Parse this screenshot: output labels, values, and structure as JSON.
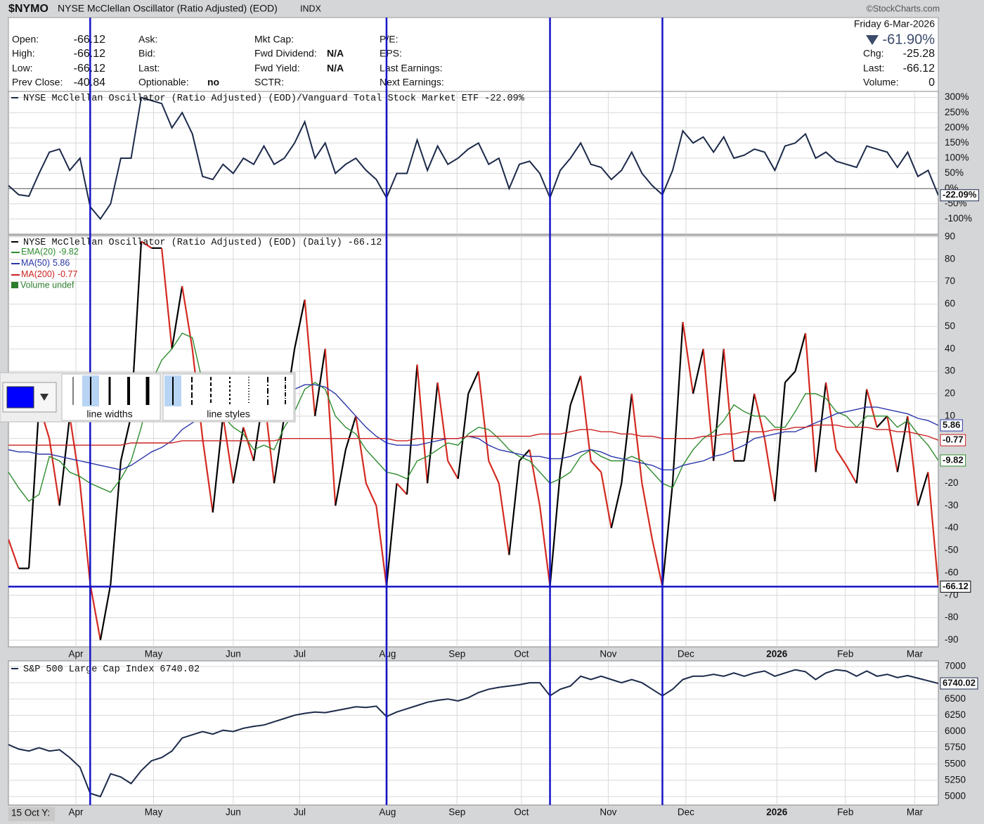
{
  "header": {
    "symbol": "$NYMO",
    "name": "NYSE McClellan Oscillator (Ratio Adjusted) (EOD)",
    "exchange": "INDX",
    "brand": "©StockCharts.com",
    "date": "Friday  6-Mar-2026",
    "change_pct": "-61.90%",
    "columns": [
      [
        {
          "label": "Open:",
          "value": -66.12
        },
        {
          "label": "High:",
          "value": -66.12
        },
        {
          "label": "Low:",
          "value": -66.12
        },
        {
          "label": "Prev Close:",
          "value": -40.84
        }
      ],
      [
        {
          "label": "Ask:"
        },
        {
          "label": "Bid:"
        },
        {
          "label": "Last:"
        },
        {
          "label": "Optionable:",
          "value": "no"
        }
      ],
      [
        {
          "label": "Mkt Cap:"
        },
        {
          "label": "Fwd Dividend:",
          "value": "N/A"
        },
        {
          "label": "Fwd Yield:",
          "value": "N/A"
        },
        {
          "label": "SCTR:"
        }
      ],
      [
        {
          "label": "P/E:"
        },
        {
          "label": "EPS:"
        },
        {
          "label": "Last Earnings:"
        },
        {
          "label": "Next Earnings:"
        }
      ]
    ],
    "right": [
      {
        "label": "Chg:",
        "value": -25.28
      },
      {
        "label": "Last:",
        "value": -66.12
      },
      {
        "label": "Volume:",
        "value": 0
      }
    ]
  },
  "chart_data": [
    {
      "type": "line",
      "xlim": [
        0,
        91
      ],
      "ylim": [
        -150,
        320
      ],
      "yticks": [
        {
          "value": 300,
          "label": "300%"
        },
        {
          "value": 250,
          "label": "250%"
        },
        {
          "value": 200,
          "label": "200%"
        },
        {
          "value": 150,
          "label": "150%"
        },
        {
          "value": 100,
          "label": "100%"
        },
        {
          "value": 50,
          "label": "50%"
        },
        {
          "value": 0,
          "label": "0%"
        },
        {
          "value": -50,
          "label": "-50%"
        },
        {
          "value": -100,
          "label": "-100%"
        }
      ],
      "grid": true,
      "last_value_label": "-22.09%",
      "series": [
        {
          "name": "NYSE McClellan Oscillator (Ratio Adjusted) (EOD)/Vanguard Total Stock Market ETF",
          "color": "#1c2a4a",
          "values": [
            10,
            -20,
            -25,
            50,
            120,
            130,
            60,
            100,
            -60,
            -100,
            -50,
            100,
            100,
            300,
            290,
            280,
            200,
            250,
            180,
            40,
            30,
            80,
            50,
            100,
            80,
            140,
            80,
            100,
            150,
            220,
            100,
            150,
            50,
            80,
            100,
            60,
            30,
            -30,
            50,
            50,
            160,
            60,
            140,
            80,
            100,
            130,
            150,
            80,
            100,
            0,
            80,
            90,
            50,
            -30,
            60,
            100,
            150,
            80,
            70,
            30,
            60,
            120,
            50,
            10,
            -20,
            60,
            190,
            150,
            170,
            120,
            170,
            100,
            110,
            130,
            120,
            60,
            140,
            150,
            180,
            100,
            120,
            90,
            80,
            70,
            140,
            130,
            120,
            70,
            120,
            40,
            60,
            -22.09
          ]
        }
      ]
    },
    {
      "type": "line",
      "xlim": [
        0,
        91
      ],
      "ylim": [
        -93,
        90.6
      ],
      "yticks": [
        90,
        80,
        70,
        60,
        50,
        40,
        30,
        20,
        10,
        0,
        -10,
        -20,
        -30,
        -40,
        -50,
        -60,
        -70,
        -80,
        -90
      ],
      "grid": true,
      "xticks": [
        {
          "value": 6.6,
          "label": "Apr"
        },
        {
          "value": 14.2,
          "label": "May"
        },
        {
          "value": 22,
          "label": "Jun"
        },
        {
          "value": 28.5,
          "label": "Jul"
        },
        {
          "value": 37.1,
          "label": "Aug"
        },
        {
          "value": 43.9,
          "label": "Sep"
        },
        {
          "value": 50.2,
          "label": "Oct"
        },
        {
          "value": 58.7,
          "label": "Nov"
        },
        {
          "value": 66.3,
          "label": "Dec"
        },
        {
          "value": 75.2,
          "label": "2026",
          "bold": true
        },
        {
          "value": 81.9,
          "label": "Feb"
        },
        {
          "value": 88.7,
          "label": "Mar"
        }
      ],
      "vlines": [
        8,
        37,
        53,
        64
      ],
      "hline": -66.12,
      "marker_color": "#1414c8",
      "legend_extra": "Volume undef",
      "legend_extra_color": "#2e7d2e",
      "series": [
        {
          "name": "NYSE McClellan Oscillator (Ratio Adjusted) (EOD) (Daily)",
          "color": "#000000",
          "up_color": "#000000",
          "down_color": "#d42a20",
          "values": [
            -45,
            -58,
            -58,
            15,
            0,
            -30,
            10,
            -20,
            -65,
            -90,
            -65,
            -10,
            10,
            88,
            85,
            85,
            40,
            68,
            40,
            0,
            -33,
            10,
            -20,
            5,
            -10,
            20,
            -20,
            10,
            40,
            62,
            10,
            40,
            -30,
            -5,
            10,
            -20,
            -30,
            -66,
            -20,
            -25,
            33,
            -20,
            25,
            -10,
            -18,
            20,
            30,
            -10,
            -20,
            -52,
            -10,
            -5,
            -30,
            -66,
            -15,
            15,
            28,
            -10,
            -15,
            -40,
            -20,
            20,
            -20,
            -45,
            -66,
            -20,
            52,
            20,
            40,
            -10,
            40,
            -10,
            -10,
            20,
            0,
            -28,
            25,
            30,
            47,
            -15,
            25,
            -5,
            -12,
            -20,
            22,
            5,
            10,
            -15,
            10,
            -30,
            -15,
            -66.12
          ]
        },
        {
          "name": "EMA(20)",
          "color": "#2e8b2e",
          "values": [
            -15,
            -22,
            -28,
            -25,
            -8,
            -10,
            -15,
            -17,
            -20,
            -22,
            -24,
            -18,
            -10,
            5,
            25,
            35,
            40,
            47,
            45,
            25,
            15,
            10,
            5,
            2,
            -5,
            -3,
            -5,
            5,
            12,
            22,
            25,
            22,
            10,
            5,
            2,
            -5,
            -10,
            -15,
            -16,
            -18,
            -10,
            -8,
            -5,
            -2,
            -3,
            2,
            5,
            4,
            0,
            -5,
            -8,
            -10,
            -15,
            -20,
            -18,
            -15,
            -8,
            -5,
            -8,
            -10,
            -10,
            -8,
            -10,
            -15,
            -20,
            -22,
            -12,
            -5,
            0,
            3,
            8,
            15,
            12,
            10,
            10,
            5,
            5,
            12,
            20,
            20,
            18,
            12,
            10,
            5,
            10,
            10,
            10,
            5,
            8,
            2,
            -3,
            -9.82
          ]
        },
        {
          "name": "MA(50)",
          "color": "#2a36a8",
          "values": [
            -5,
            -6,
            -6,
            -7,
            -7,
            -8,
            -9,
            -10,
            -11,
            -12,
            -13,
            -14,
            -12,
            -9,
            -6,
            -4,
            -1,
            4,
            7,
            10,
            12,
            14,
            15,
            16,
            17,
            18,
            18,
            20,
            22,
            24,
            24,
            23,
            20,
            15,
            10,
            5,
            1,
            -2,
            -3,
            -3,
            -3,
            -2,
            -1,
            0,
            0,
            1,
            0,
            -3,
            -5,
            -6,
            -7,
            -8,
            -8,
            -9,
            -9,
            -8,
            -6,
            -5,
            -6,
            -8,
            -9,
            -10,
            -11,
            -12,
            -14,
            -14,
            -12,
            -11,
            -10,
            -8,
            -7,
            -5,
            -3,
            0,
            1,
            2,
            3,
            3,
            5,
            7,
            9,
            11,
            12,
            13,
            14,
            14,
            13,
            12,
            11,
            9,
            8,
            5.86
          ]
        },
        {
          "name": "MA(200)",
          "color": "#cc2222",
          "values": [
            -3,
            -3,
            -3,
            -3,
            -3,
            -3,
            -3,
            -3,
            -3,
            -3,
            -3,
            -3,
            -2,
            -2,
            -2,
            -2,
            -2,
            -1,
            -1,
            -1,
            -1,
            -1,
            -1,
            -1,
            -1,
            -1,
            -1,
            0,
            0,
            0,
            0,
            0,
            0,
            0,
            0,
            0,
            0,
            0,
            -1,
            -1,
            0,
            0,
            0,
            0,
            0,
            1,
            1,
            1,
            1,
            1,
            1,
            1,
            2,
            2,
            2,
            3,
            4,
            4,
            3,
            3,
            2,
            2,
            1,
            1,
            0,
            0,
            0,
            0,
            1,
            1,
            2,
            2,
            3,
            3,
            3,
            4,
            4,
            5,
            5,
            6,
            6,
            6,
            5,
            5,
            5,
            4,
            4,
            3,
            3,
            2,
            1,
            -0.77
          ]
        }
      ]
    },
    {
      "type": "line",
      "xlim": [
        0,
        91
      ],
      "ylim": [
        4870,
        7086
      ],
      "yticks": [
        7000,
        6750,
        6500,
        6250,
        6000,
        5750,
        5500,
        5250,
        5000
      ],
      "grid": true,
      "xticks": [
        {
          "value": 6.6,
          "label": "Apr"
        },
        {
          "value": 14.2,
          "label": "May"
        },
        {
          "value": 22,
          "label": "Jun"
        },
        {
          "value": 28.5,
          "label": "Jul"
        },
        {
          "value": 37.1,
          "label": "Aug"
        },
        {
          "value": 43.9,
          "label": "Sep"
        },
        {
          "value": 50.2,
          "label": "Oct"
        },
        {
          "value": 58.7,
          "label": "Nov"
        },
        {
          "value": 66.3,
          "label": "Dec"
        },
        {
          "value": 75.2,
          "label": "2026",
          "bold": true
        },
        {
          "value": 81.9,
          "label": "Feb"
        },
        {
          "value": 88.7,
          "label": "Mar"
        }
      ],
      "corner_label": "15 Oct Y:",
      "series": [
        {
          "name": "S&P 500 Large Cap Index",
          "color": "#1c2a4a",
          "values": [
            5800,
            5730,
            5700,
            5750,
            5700,
            5720,
            5600,
            5450,
            5050,
            5000,
            5350,
            5300,
            5200,
            5400,
            5550,
            5600,
            5700,
            5900,
            5950,
            6000,
            5960,
            6020,
            6000,
            6050,
            6080,
            6100,
            6150,
            6200,
            6250,
            6280,
            6300,
            6290,
            6320,
            6350,
            6380,
            6370,
            6390,
            6230,
            6300,
            6350,
            6400,
            6450,
            6480,
            6500,
            6470,
            6520,
            6600,
            6650,
            6680,
            6700,
            6720,
            6750,
            6750,
            6550,
            6650,
            6700,
            6850,
            6800,
            6850,
            6800,
            6750,
            6800,
            6750,
            6650,
            6550,
            6650,
            6800,
            6850,
            6850,
            6880,
            6850,
            6900,
            6850,
            6900,
            6930,
            6850,
            6900,
            6950,
            6920,
            6800,
            6900,
            6950,
            6930,
            6850,
            6930,
            6850,
            6880,
            6830,
            6860,
            6820,
            6780,
            6740.02
          ]
        }
      ]
    }
  ],
  "toolbar": {
    "widths_label": "line widths",
    "styles_label": "line styles"
  }
}
